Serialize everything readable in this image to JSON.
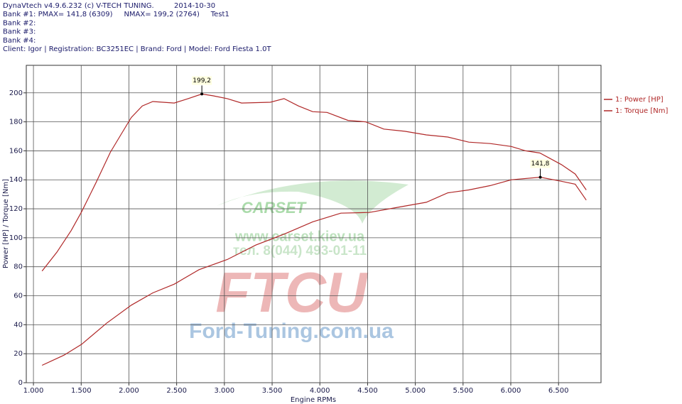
{
  "chart_data": {
    "type": "line",
    "header": [
      "DynaVtech v4.9.6.232 (c) V-TECH TUNING.",
      "Bank #1: PMAX= 141,8 (6309)     NMAX= 199,2 (2764)     Test1",
      "Bank #2:",
      "Bank #3:",
      "Bank #4:",
      "Client: Igor | Registration: BC3251EC | Brand: Ford | Model: Ford Fiesta 1.0T"
    ],
    "date": "2014-10-30",
    "x_label": "Engine RPMs",
    "y_label": "Power [HP] / Torque [Nm]",
    "xlim": [
      925,
      6945
    ],
    "ylim": [
      0,
      219
    ],
    "xticks": [
      {
        "value": 1000,
        "label": "1.000"
      },
      {
        "value": 1500,
        "label": "1.500"
      },
      {
        "value": 2000,
        "label": "2.000"
      },
      {
        "value": 2500,
        "label": "2.500"
      },
      {
        "value": 3000,
        "label": "3.000"
      },
      {
        "value": 3500,
        "label": "3.500"
      },
      {
        "value": 4000,
        "label": "4.000"
      },
      {
        "value": 4500,
        "label": "4.500"
      },
      {
        "value": 5000,
        "label": "5.000"
      },
      {
        "value": 5500,
        "label": "5.500"
      },
      {
        "value": 6000,
        "label": "6.000"
      },
      {
        "value": 6500,
        "label": "6.500"
      }
    ],
    "yticks": [
      0,
      20,
      40,
      60,
      80,
      100,
      120,
      140,
      160,
      180,
      200
    ],
    "grid": true,
    "legend": "right",
    "series": [
      {
        "name": "1: Power [HP]",
        "color": "#b02828",
        "x": [
          1090,
          1320,
          1505,
          1765,
          2025,
          2250,
          2475,
          2735,
          3030,
          3330,
          3625,
          3925,
          4220,
          4520,
          4815,
          5115,
          5340,
          5560,
          5785,
          6005,
          6309,
          6530,
          6675,
          6790
        ],
        "values": [
          12,
          19,
          26.5,
          41,
          53.5,
          62,
          68,
          78,
          85,
          95,
          102.5,
          111,
          117,
          117.5,
          121,
          124.5,
          131,
          133,
          136,
          140,
          141.8,
          139,
          137,
          126
        ]
      },
      {
        "name": "1: Torque [Nm]",
        "color": "#b02828",
        "x": [
          1090,
          1245,
          1395,
          1505,
          1655,
          1805,
          1915,
          2025,
          2140,
          2250,
          2475,
          2620,
          2764,
          2880,
          3030,
          3180,
          3480,
          3625,
          3775,
          3925,
          4075,
          4295,
          4480,
          4670,
          4890,
          5115,
          5340,
          5560,
          5785,
          6005,
          6155,
          6305,
          6530,
          6675,
          6790
        ],
        "values": [
          77,
          90,
          105,
          118,
          138,
          159,
          171,
          183,
          191,
          194,
          193,
          196,
          199.2,
          198,
          196,
          193,
          193.5,
          196,
          191,
          187,
          186.5,
          181,
          180,
          175,
          173.5,
          171,
          169.5,
          166,
          165,
          163,
          160,
          158.5,
          150.5,
          144,
          133
        ]
      }
    ],
    "annotations": [
      {
        "x": 2764,
        "y": 199.2,
        "label": "199,2"
      },
      {
        "x": 6309,
        "y": 141.8,
        "label": "141,8"
      }
    ],
    "watermarks": [
      "CARSET",
      "www.carset.kiev.ua",
      "тел. 8(044) 493-01-11",
      "FTCU",
      "Ford-Tuning.com.ua"
    ]
  }
}
